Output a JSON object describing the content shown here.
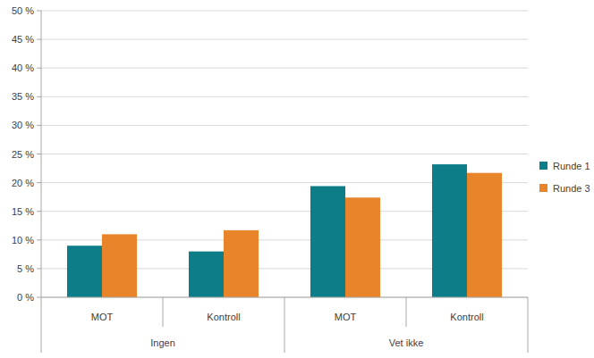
{
  "chart_data": {
    "type": "bar",
    "categories": [
      "MOT",
      "Kontroll",
      "MOT",
      "Kontroll"
    ],
    "category_groups": [
      "Ingen",
      "Ingen",
      "Vet ikke",
      "Vet ikke"
    ],
    "series": [
      {
        "name": "Runde 1",
        "color": "#0d7e88",
        "values": [
          9.0,
          8.0,
          19.4,
          23.2
        ]
      },
      {
        "name": "Runde 3",
        "color": "#e8842a",
        "values": [
          11.0,
          11.7,
          17.4,
          21.7
        ]
      }
    ],
    "ylim": [
      0,
      50
    ],
    "yticks": [
      {
        "value": 0,
        "label": "0 %"
      },
      {
        "value": 5,
        "label": "5 %"
      },
      {
        "value": 10,
        "label": "10 %"
      },
      {
        "value": 15,
        "label": "15 %"
      },
      {
        "value": 20,
        "label": "20 %"
      },
      {
        "value": 25,
        "label": "25 %"
      },
      {
        "value": 30,
        "label": "30 %"
      },
      {
        "value": 35,
        "label": "35 %"
      },
      {
        "value": 40,
        "label": "40 %"
      },
      {
        "value": 45,
        "label": "45 %"
      },
      {
        "value": 50,
        "label": "50 %"
      }
    ],
    "grid": true,
    "legend": "right"
  }
}
